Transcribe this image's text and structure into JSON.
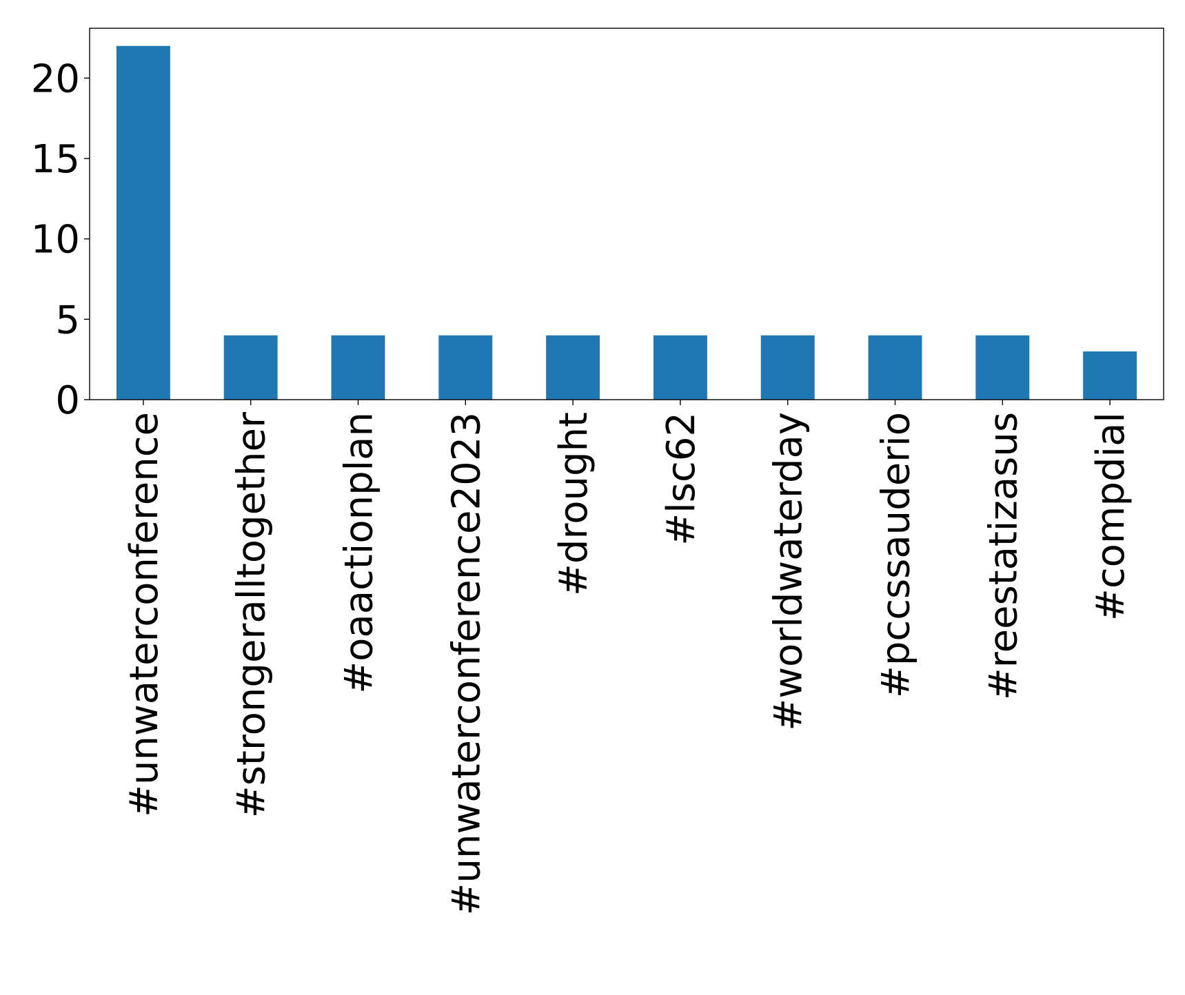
{
  "chart_data": {
    "type": "bar",
    "title": "",
    "xlabel": "",
    "ylabel": "",
    "categories": [
      "#unwaterconference",
      "#strongeralltogether",
      "#oaactionplan",
      "#unwaterconference2023",
      "#drought",
      "#lsc62",
      "#worldwaterday",
      "#pccssauderio",
      "#reestatizasus",
      "#compdial"
    ],
    "values": [
      22,
      4,
      4,
      4,
      4,
      4,
      4,
      4,
      4,
      3
    ],
    "ylim": [
      0,
      23.1
    ],
    "yticks": [
      0,
      5,
      10,
      15,
      20
    ],
    "bar_color": "#1f77b4",
    "grid": false,
    "legend": "none"
  }
}
